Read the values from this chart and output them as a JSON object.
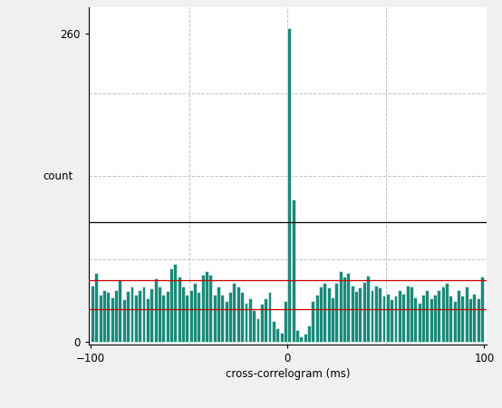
{
  "bar_color": "#1a8a7a",
  "bar_edge_color": "#ffffff",
  "background_color": "#f0f0f0",
  "plot_bg_color": "#ffffff",
  "grid_color": "#b8c4d8",
  "xlabel": "cross-correlogram (ms)",
  "ylabel": "count",
  "xlim": [
    -101,
    101
  ],
  "ylim": [
    -2,
    282
  ],
  "yticks": [
    0,
    260
  ],
  "xticks": [
    -100,
    0,
    100
  ],
  "black_line_y": 101,
  "red_line_upper_y": 52,
  "red_line_lower_y": 28,
  "bin_width": 2,
  "bins_left": [
    -100,
    -98,
    -96,
    -94,
    -92,
    -90,
    -88,
    -86,
    -84,
    -82,
    -80,
    -78,
    -76,
    -74,
    -72,
    -70,
    -68,
    -66,
    -64,
    -62,
    -60,
    -58,
    -56,
    -54,
    -52,
    -50,
    -48,
    -46,
    -44,
    -42,
    -40,
    -38,
    -36,
    -34,
    -32,
    -30,
    -28,
    -26,
    -24,
    -22,
    -20,
    -18,
    -16,
    -14,
    -12,
    -10,
    -8,
    -6,
    -4,
    -2,
    0,
    2,
    4,
    6,
    8,
    10,
    12,
    14,
    16,
    18,
    20,
    22,
    24,
    26,
    28,
    30,
    32,
    34,
    36,
    38,
    40,
    42,
    44,
    46,
    48,
    50,
    52,
    54,
    56,
    58,
    60,
    62,
    64,
    66,
    68,
    70,
    72,
    74,
    76,
    78,
    80,
    82,
    84,
    86,
    88,
    90,
    92,
    94,
    96,
    98
  ],
  "counts": [
    48,
    58,
    40,
    44,
    42,
    38,
    44,
    52,
    36,
    43,
    47,
    40,
    44,
    47,
    37,
    45,
    54,
    47,
    40,
    43,
    62,
    66,
    55,
    47,
    40,
    44,
    50,
    42,
    57,
    60,
    57,
    40,
    47,
    40,
    35,
    42,
    50,
    47,
    42,
    33,
    37,
    27,
    20,
    32,
    37,
    42,
    18,
    12,
    8,
    35,
    265,
    120,
    10,
    5,
    7,
    14,
    35,
    40,
    47,
    50,
    46,
    38,
    50,
    60,
    55,
    58,
    48,
    43,
    46,
    51,
    56,
    44,
    48,
    46,
    39,
    41,
    36,
    39,
    44,
    41,
    48,
    47,
    38,
    33,
    40,
    44,
    37,
    40,
    44,
    47,
    50,
    39,
    35,
    44,
    39,
    47,
    37,
    41,
    37,
    55
  ],
  "grid_xticks": [
    -50,
    0,
    50
  ],
  "grid_yticks": [
    70,
    140,
    210
  ]
}
